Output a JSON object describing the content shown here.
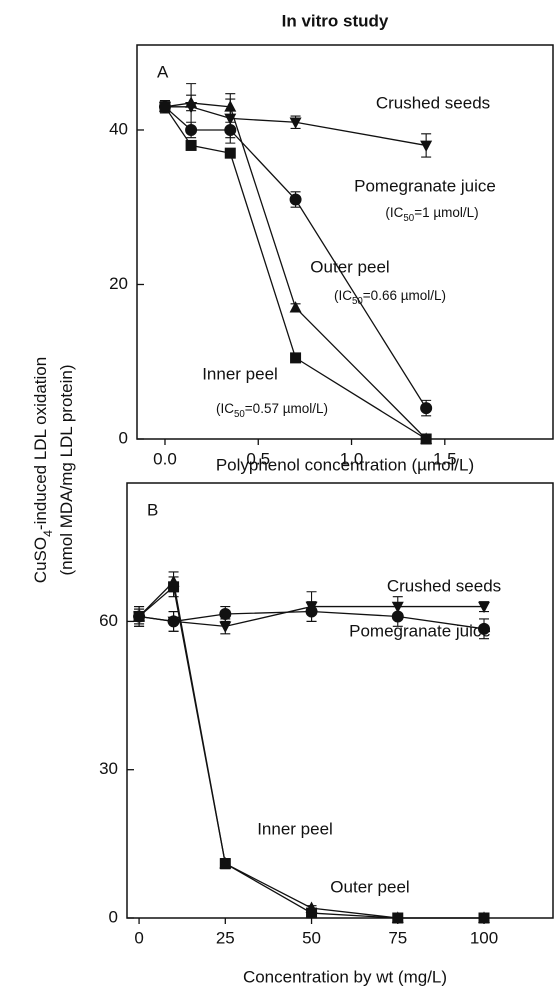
{
  "title": "In vitro study",
  "ylabel": [
    [
      "CuSO",
      "4",
      "-induced LDL oxidation"
    ],
    [
      "(nmol MDA/mg LDL protein)"
    ]
  ],
  "chart_data": [
    {
      "type": "line",
      "panel_label": "A",
      "xlabel": "Polyphenol concentration (µmol/L)",
      "x": [
        0,
        0.14,
        0.35,
        0.7,
        1.4
      ],
      "xlim": [
        -0.15,
        2.08
      ],
      "ylim": [
        0,
        51
      ],
      "xticks": [
        {
          "value": 0,
          "label": "0.0"
        },
        0.5,
        {
          "value": 1,
          "label": "1.0"
        },
        1.5
      ],
      "yticks": [
        0,
        20,
        40
      ],
      "series": [
        {
          "name": "Crushed seeds",
          "marker": "tri-down",
          "color": "#111",
          "values": [
            43,
            43,
            41.5,
            41,
            38
          ],
          "errors": [
            0.8,
            3,
            3.2,
            0.8,
            1.5
          ]
        },
        {
          "name": "Pomegranate juice",
          "marker": "circle",
          "color": "#111",
          "values": [
            43,
            40,
            40,
            31,
            4
          ],
          "errors": [
            0.8,
            1,
            1,
            1,
            1
          ]
        },
        {
          "name": "Outer peel",
          "marker": "tri-up",
          "color": "#111",
          "values": [
            43,
            43.5,
            43,
            17,
            0
          ],
          "errors": [
            0.8,
            1,
            1,
            0.5,
            0.3
          ]
        },
        {
          "name": "Inner peel",
          "marker": "square",
          "color": "#111",
          "values": [
            43,
            38,
            37,
            10.5,
            0
          ],
          "errors": [
            0.8,
            0.5,
            0.5,
            0.5,
            0.3
          ]
        }
      ],
      "annotations": [
        [
          "(IC",
          "50",
          "=1 µmol/L)"
        ],
        [
          "(IC",
          "50",
          "=0.66 µmol/L)"
        ],
        [
          "(IC",
          "50",
          "=0.57 µmol/L)"
        ]
      ]
    },
    {
      "type": "line",
      "panel_label": "B",
      "xlabel": "Concentration by wt (mg/L)",
      "x": [
        0,
        10,
        25,
        50,
        75,
        100
      ],
      "xlim": [
        -3.5,
        120
      ],
      "ylim": [
        0,
        88
      ],
      "xticks": [
        0,
        25,
        50,
        75,
        100
      ],
      "yticks": [
        0,
        30,
        60
      ],
      "series": [
        {
          "name": "Crushed seeds",
          "marker": "tri-down",
          "color": "#111",
          "values": [
            61,
            60,
            59,
            63,
            63,
            63
          ],
          "errors": [
            2,
            2,
            1.5,
            3,
            2,
            1
          ]
        },
        {
          "name": "Pomegranate juice",
          "marker": "circle",
          "color": "#111",
          "values": [
            61,
            60,
            61.5,
            62,
            61,
            58.5
          ],
          "errors": [
            2,
            2,
            1.5,
            2,
            2,
            2
          ]
        },
        {
          "name": "Inner peel",
          "marker": "square",
          "color": "#111",
          "values": [
            61,
            67,
            11,
            1,
            0,
            0
          ],
          "errors": [
            1.5,
            2,
            1,
            0.5,
            0.3,
            0.3
          ]
        },
        {
          "name": "Outer peel",
          "marker": "tri-up",
          "color": "#111",
          "values": [
            61,
            68,
            11,
            2,
            0,
            0
          ],
          "errors": [
            1.5,
            2,
            1,
            0.5,
            0.3,
            0.3
          ]
        }
      ],
      "annotations": []
    }
  ]
}
